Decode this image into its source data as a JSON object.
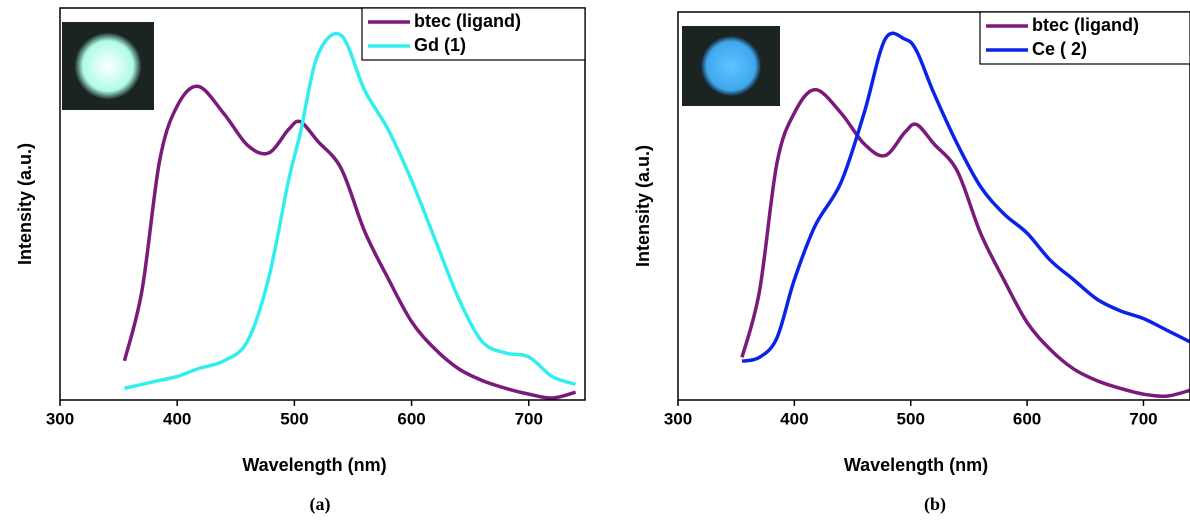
{
  "chart_data": [
    {
      "type": "line",
      "caption": "(a)",
      "xlabel": "Wavelength (nm)",
      "ylabel": "Intensity (a.u.)",
      "x": [
        355,
        370,
        385,
        400,
        418,
        440,
        460,
        478,
        495,
        505,
        520,
        540,
        560,
        580,
        600,
        620,
        640,
        660,
        680,
        700,
        720,
        740
      ],
      "series": [
        {
          "name": "btec (ligand)",
          "color": "#7b1a7b",
          "values": [
            0.1,
            0.28,
            0.61,
            0.75,
            0.8,
            0.73,
            0.65,
            0.63,
            0.69,
            0.71,
            0.66,
            0.59,
            0.43,
            0.31,
            0.2,
            0.13,
            0.08,
            0.05,
            0.03,
            0.015,
            0.005,
            0.02
          ]
        },
        {
          "name": "Gd (1)",
          "color": "#33eeee",
          "values": [
            0.03,
            0.04,
            0.05,
            0.06,
            0.08,
            0.1,
            0.15,
            0.31,
            0.56,
            0.68,
            0.88,
            0.93,
            0.79,
            0.69,
            0.56,
            0.41,
            0.26,
            0.15,
            0.12,
            0.11,
            0.06,
            0.04
          ]
        }
      ],
      "xlim": [
        300,
        748
      ],
      "xticks": [
        300,
        400,
        500,
        600,
        700
      ],
      "ylim": [
        0,
        1
      ],
      "legend": "upper right",
      "inset_color": "#aefbe8"
    },
    {
      "type": "line",
      "caption": "(b)",
      "xlabel": "Wavelength (nm)",
      "ylabel": "Intensity (a.u.)",
      "x": [
        355,
        370,
        385,
        400,
        418,
        440,
        460,
        478,
        495,
        505,
        520,
        540,
        560,
        580,
        600,
        620,
        640,
        660,
        680,
        700,
        720,
        740
      ],
      "series": [
        {
          "name": "btec (ligand)",
          "color": "#7b1a7b",
          "values": [
            0.11,
            0.28,
            0.61,
            0.74,
            0.8,
            0.74,
            0.66,
            0.63,
            0.69,
            0.71,
            0.66,
            0.59,
            0.43,
            0.31,
            0.2,
            0.13,
            0.08,
            0.05,
            0.03,
            0.015,
            0.01,
            0.025
          ]
        },
        {
          "name": "Ce ( 2)",
          "color": "#0a24e6",
          "values": [
            0.1,
            0.11,
            0.16,
            0.31,
            0.45,
            0.56,
            0.74,
            0.93,
            0.93,
            0.9,
            0.79,
            0.66,
            0.55,
            0.48,
            0.43,
            0.36,
            0.31,
            0.26,
            0.23,
            0.21,
            0.18,
            0.15
          ]
        }
      ],
      "xlim": [
        300,
        740
      ],
      "xticks": [
        300,
        400,
        500,
        600,
        700
      ],
      "ylim": [
        0,
        1
      ],
      "legend": "upper right",
      "inset_color": "#3fa8ee"
    }
  ]
}
